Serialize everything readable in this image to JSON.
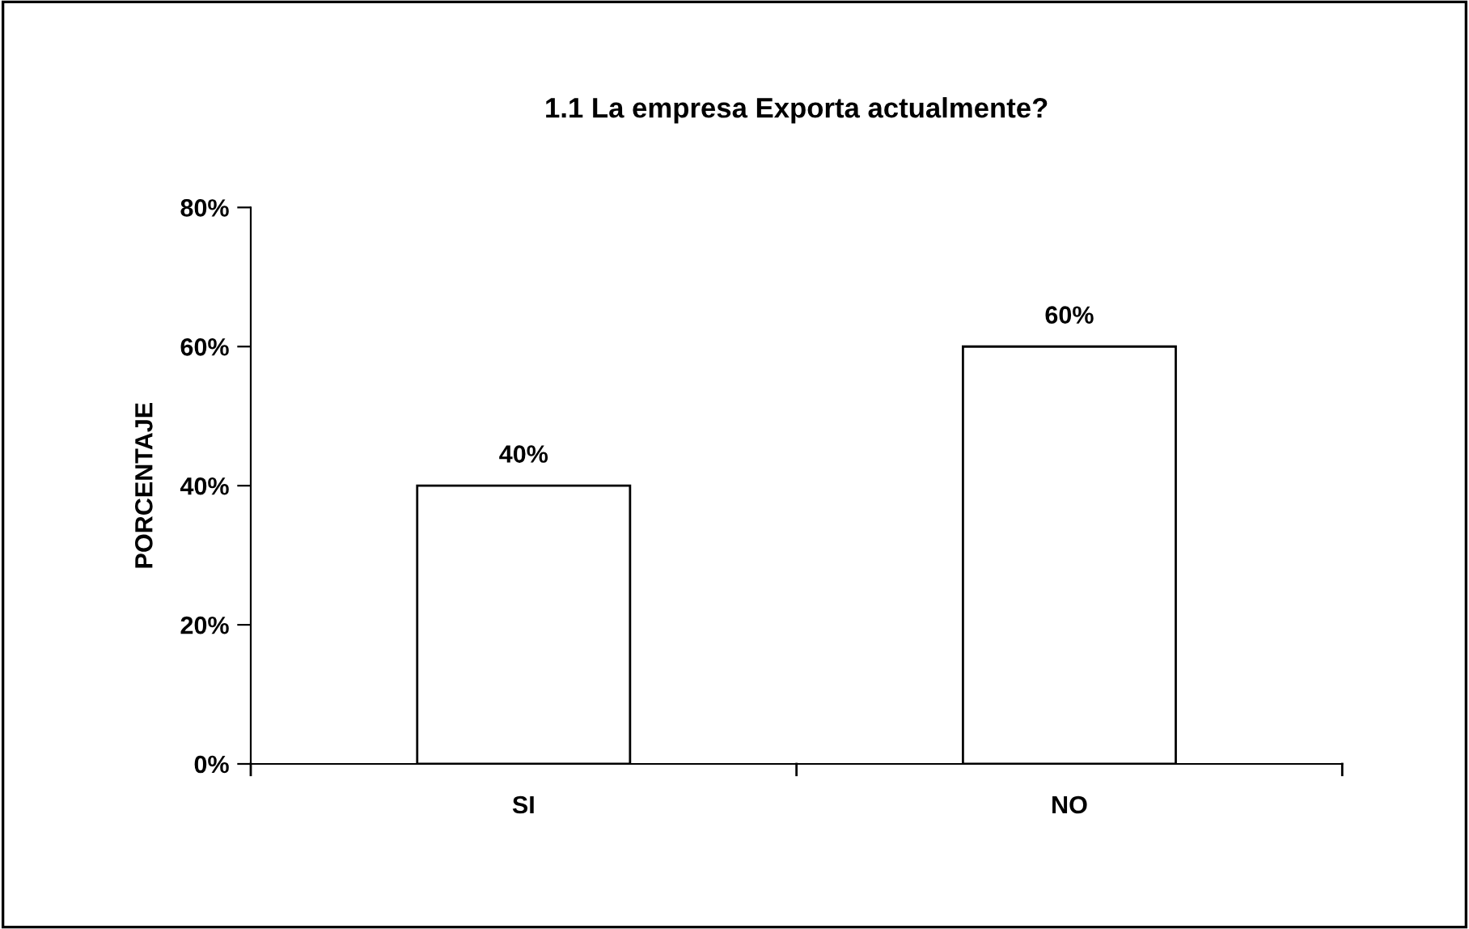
{
  "chart_data": {
    "type": "bar",
    "title": "1.1 La empresa Exporta actualmente?",
    "ylabel": "PORCENTAJE",
    "categories": [
      "SI",
      "NO"
    ],
    "values": [
      40,
      60
    ],
    "color": "#ffffff",
    "value_labels": [
      "40%",
      "60%"
    ],
    "ylim": [
      0,
      80
    ],
    "yticks": [
      {
        "value": 0,
        "label": "0%"
      },
      {
        "value": 20,
        "label": "20%"
      },
      {
        "value": 40,
        "label": "40%"
      },
      {
        "value": 60,
        "label": "60%"
      },
      {
        "value": 80,
        "label": "80%"
      }
    ],
    "grid": false,
    "legend": false
  }
}
